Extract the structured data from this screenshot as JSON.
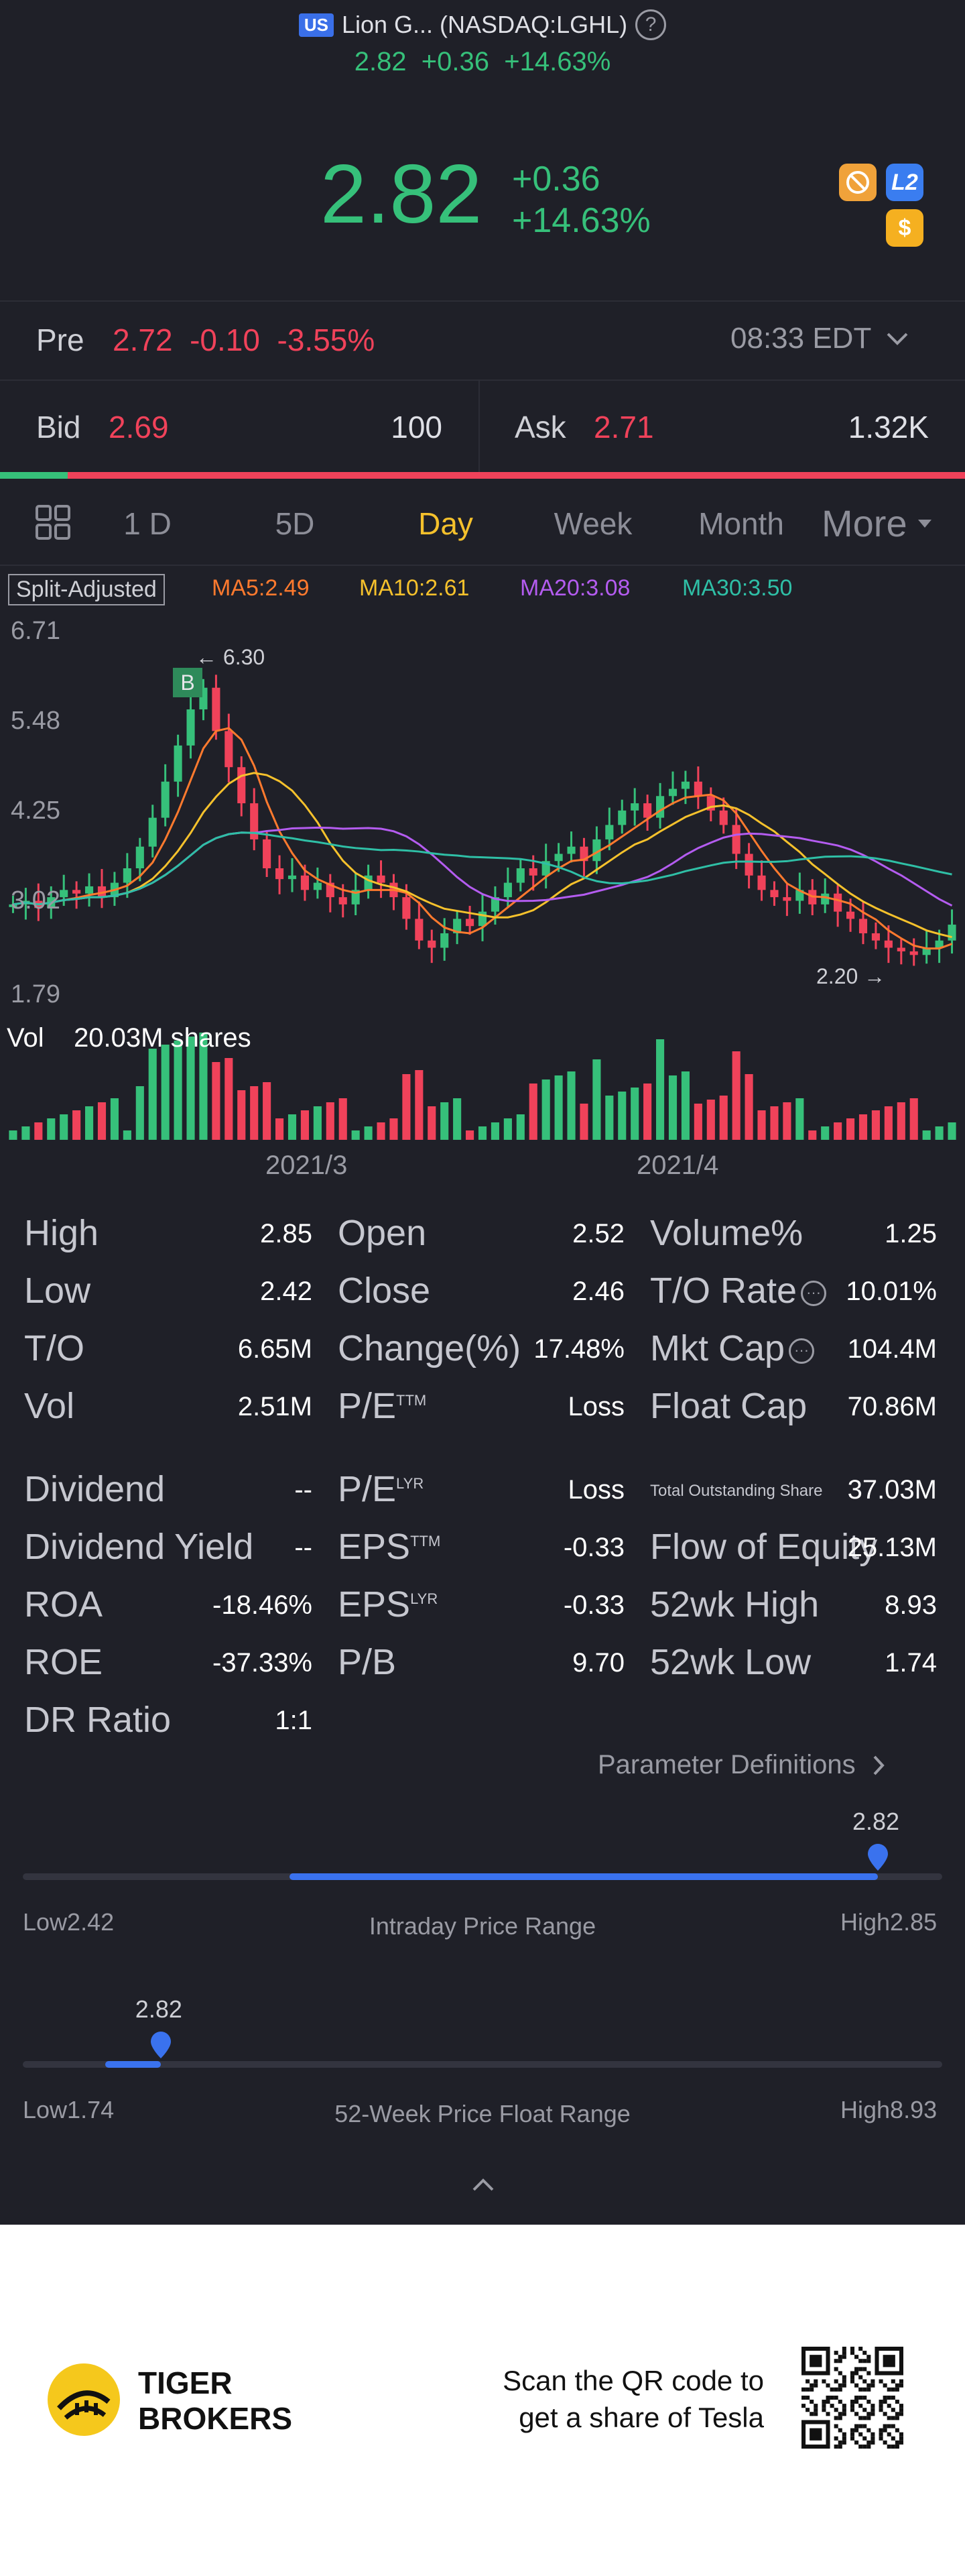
{
  "header": {
    "market_badge": "US",
    "title": "Lion G... (NASDAQ:LGHL)",
    "price": "2.82",
    "change": "+0.36",
    "change_pct": "+14.63%"
  },
  "quote": {
    "price": "2.82",
    "change": "+0.36",
    "change_pct": "+14.63%",
    "badges": [
      "no-margin-icon",
      "L2",
      "dollar-icon"
    ],
    "badge_l2": "L2",
    "badge_dollar": "$"
  },
  "premarket": {
    "label": "Pre",
    "price": "2.72",
    "change": "-0.10",
    "change_pct": "-3.55%",
    "time": "08:33 EDT"
  },
  "bidask": {
    "bid_label": "Bid",
    "bid_price": "2.69",
    "bid_size": "100",
    "ask_label": "Ask",
    "ask_price": "2.71",
    "ask_size": "1.32K",
    "bid_ratio": 0.07
  },
  "tabs": [
    "1 D",
    "5D",
    "Day",
    "Week",
    "Month",
    "More"
  ],
  "active_tab": "Day",
  "chart_legend": {
    "adjust": "Split-Adjusted",
    "ma5": "MA5:2.49",
    "ma10": "MA10:2.61",
    "ma20": "MA20:3.08",
    "ma30": "MA30:3.50"
  },
  "chart_data": {
    "type": "candlestick",
    "y_ticks": [
      "6.71",
      "5.48",
      "4.25",
      "3.02",
      "1.79"
    ],
    "ylim": [
      1.79,
      6.71
    ],
    "x_ticks": [
      "2021/3",
      "2021/4"
    ],
    "high_marker": "← 6.30",
    "low_marker": "2.20 →",
    "buy_marker": "B",
    "volume_label": "Vol",
    "volume_value": "20.03M shares",
    "colors": {
      "up": "#36c07a",
      "down": "#f0425a",
      "ma5": "#ff7a2e",
      "ma10": "#f5c12c",
      "ma20": "#b45cf0",
      "ma30": "#2fbfa6"
    }
  },
  "stats": {
    "col1": [
      {
        "label": "High",
        "value": "2.85"
      },
      {
        "label": "Low",
        "value": "2.42"
      },
      {
        "label": "T/O",
        "value": "6.65M"
      },
      {
        "label": "Vol",
        "value": "2.51M"
      },
      {
        "label": "Dividend",
        "value": "--"
      },
      {
        "label": "Dividend Yield",
        "value": "--"
      },
      {
        "label": "ROA",
        "value": "-18.46%"
      },
      {
        "label": "ROE",
        "value": "-37.33%"
      },
      {
        "label": "DR Ratio",
        "value": "1:1"
      }
    ],
    "col2": [
      {
        "label": "Open",
        "value": "2.52"
      },
      {
        "label": "Close",
        "value": "2.46"
      },
      {
        "label": "Change(%)",
        "value": "17.48%"
      },
      {
        "label": "P/E",
        "sup": "TTM",
        "value": "Loss"
      },
      {
        "label": "P/E",
        "sup": "LYR",
        "value": "Loss"
      },
      {
        "label": "EPS",
        "sup": "TTM",
        "value": "-0.33"
      },
      {
        "label": "EPS",
        "sup": "LYR",
        "value": "-0.33"
      },
      {
        "label": "P/B",
        "value": "9.70"
      }
    ],
    "col3": [
      {
        "label": "Volume%",
        "value": "1.25"
      },
      {
        "label": "T/O Rate",
        "value": "10.01%"
      },
      {
        "label": "Mkt Cap",
        "value": "104.4M"
      },
      {
        "label": "Float Cap",
        "value": "70.86M"
      },
      {
        "label": "Total Outstanding Share",
        "value": "37.03M"
      },
      {
        "label": "Flow of Equity",
        "value": "25.13M"
      },
      {
        "label": "52wk High",
        "value": "8.93"
      },
      {
        "label": "52wk Low",
        "value": "1.74"
      }
    ],
    "param_link": "Parameter Definitions"
  },
  "intraday_range": {
    "title": "Intraday Price Range",
    "current": "2.82",
    "low_label": "Low",
    "low": "2.42",
    "high_label": "High",
    "high": "2.85",
    "fill_start": 0.29,
    "position": 0.93
  },
  "week52_range": {
    "title": "52-Week Price Float Range",
    "current": "2.82",
    "low_label": "Low",
    "low": "1.74",
    "high_label": "High",
    "high": "8.93",
    "fill_start": 0.09,
    "position": 0.15
  },
  "footer": {
    "brand_line1": "TIGER",
    "brand_line2": "BROKERS",
    "cta_line1": "Scan the QR code to",
    "cta_line2": "get a share of Tesla"
  }
}
